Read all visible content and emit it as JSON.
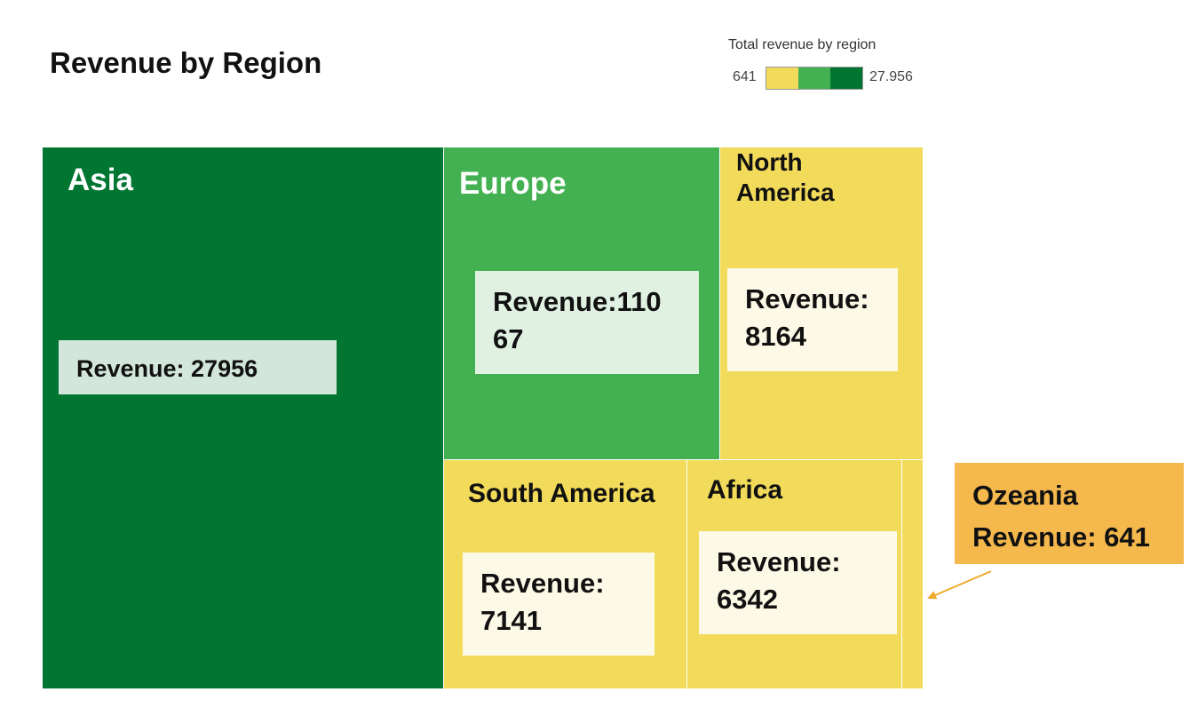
{
  "page": {
    "title": "Revenue by Region"
  },
  "legend": {
    "title": "Total revenue by region",
    "min_label": "641",
    "max_label": "27.956",
    "colors": [
      "#f2da5a",
      "#43b152",
      "#007632"
    ]
  },
  "chart_data": {
    "type": "treemap",
    "title": "Revenue by Region",
    "items": [
      {
        "name": "Asia",
        "value": 27956,
        "label_line1": "Revenue: 27956",
        "label_line2": "",
        "color": "#007632",
        "name_color": "#ffffff",
        "box_color": "#d3e6dc"
      },
      {
        "name": "Europe",
        "value": 11067,
        "label_line1": "Revenue:110",
        "label_line2": "67",
        "color": "#43b152",
        "name_color": "#ffffff",
        "box_color": "#e0f1e1"
      },
      {
        "name": "North America",
        "name_line1": "North",
        "name_line2": "America",
        "value": 8164,
        "label_line1": "Revenue:",
        "label_line2": "8164",
        "color": "#f2da5a",
        "name_color": "#111111",
        "box_color": "#fcf9e6"
      },
      {
        "name": "South America",
        "value": 7141,
        "label_line1": "Revenue:",
        "label_line2": "7141",
        "color": "#f2da5a",
        "name_color": "#111111",
        "box_color": "#fcf9e6"
      },
      {
        "name": "Africa",
        "value": 6342,
        "label_line1": "Revenue:",
        "label_line2": "6342",
        "color": "#f2da5a",
        "name_color": "#111111",
        "box_color": "#fcf9e6"
      },
      {
        "name": "Ozeania",
        "value": 641,
        "color": "#f2da5a"
      }
    ],
    "callout": {
      "line1": "Ozeania",
      "line2": "Revenue: 641",
      "color": "#f4b84d",
      "arrow_color": "#f0a92a"
    }
  }
}
